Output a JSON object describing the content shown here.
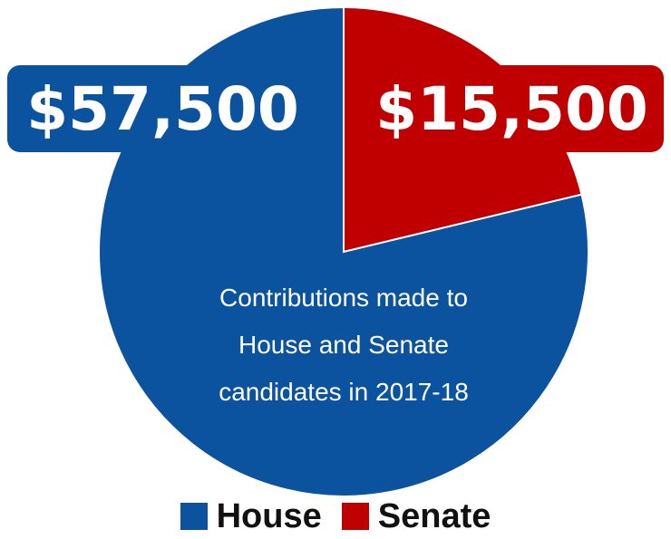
{
  "chart_data": {
    "type": "pie",
    "categories": [
      "House",
      "Senate"
    ],
    "values": [
      57500,
      15500
    ],
    "value_labels": [
      "$57,500",
      "$15,500"
    ],
    "colors": [
      "#0b539f",
      "#c00000"
    ],
    "center_text": [
      "Contributions made to",
      "House and Senate",
      "candidates in 2017-18"
    ],
    "legend": [
      "House",
      "Senate"
    ],
    "legend_placement": "bottom"
  }
}
